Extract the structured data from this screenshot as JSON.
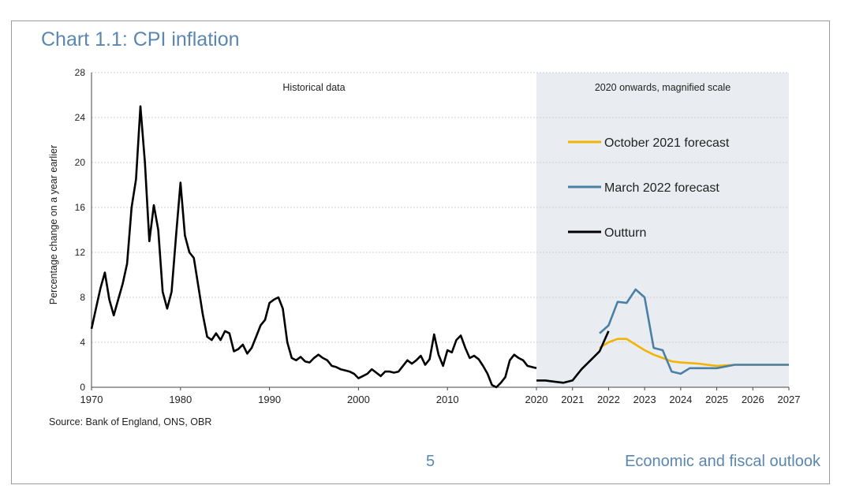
{
  "page": {
    "title": "Chart 1.1: CPI inflation",
    "source": "Source: Bank of England, ONS, OBR",
    "page_number": "5",
    "footer": "Economic and fiscal outlook"
  },
  "colors": {
    "outturn": "#000000",
    "october_2021": "#f2b400",
    "march_2022": "#4a7fa6",
    "shade": "#e9edf1",
    "grid": "#cfcfcf"
  },
  "chart_data": {
    "type": "line",
    "title": "Chart 1.1: CPI inflation",
    "ylabel": "Percentage change on a year earlier",
    "xlabel": "",
    "ylim": [
      0,
      28
    ],
    "yticks": [
      "0",
      "4",
      "8",
      "12",
      "16",
      "20",
      "24",
      "28"
    ],
    "grid": true,
    "legend_placement": "right, inside shaded panel",
    "annotations": [
      "Historical data",
      "2020 onwards, magnified scale"
    ],
    "historical": {
      "x_ticks": [
        "1970",
        "1980",
        "1990",
        "2000",
        "2010"
      ],
      "xlim": [
        1970,
        2020
      ],
      "outturn": [
        [
          1970,
          5.2
        ],
        [
          1970.5,
          7.0
        ],
        [
          1971,
          8.8
        ],
        [
          1971.5,
          10.2
        ],
        [
          1972,
          7.8
        ],
        [
          1972.5,
          6.4
        ],
        [
          1973,
          7.8
        ],
        [
          1973.5,
          9.2
        ],
        [
          1974,
          11.0
        ],
        [
          1974.5,
          16.0
        ],
        [
          1975,
          18.5
        ],
        [
          1975.5,
          25.0
        ],
        [
          1976,
          20.0
        ],
        [
          1976.5,
          13.0
        ],
        [
          1977,
          16.2
        ],
        [
          1977.5,
          14.0
        ],
        [
          1978,
          8.5
        ],
        [
          1978.5,
          7.0
        ],
        [
          1979,
          8.5
        ],
        [
          1979.5,
          13.5
        ],
        [
          1980,
          18.2
        ],
        [
          1980.5,
          13.5
        ],
        [
          1981,
          12.0
        ],
        [
          1981.5,
          11.5
        ],
        [
          1982,
          9.0
        ],
        [
          1982.5,
          6.5
        ],
        [
          1983,
          4.5
        ],
        [
          1983.5,
          4.2
        ],
        [
          1984,
          4.8
        ],
        [
          1984.5,
          4.2
        ],
        [
          1985,
          5.0
        ],
        [
          1985.5,
          4.8
        ],
        [
          1986,
          3.2
        ],
        [
          1986.5,
          3.4
        ],
        [
          1987,
          3.8
        ],
        [
          1987.5,
          3.0
        ],
        [
          1988,
          3.5
        ],
        [
          1988.5,
          4.5
        ],
        [
          1989,
          5.5
        ],
        [
          1989.5,
          6.0
        ],
        [
          1990,
          7.5
        ],
        [
          1990.5,
          7.8
        ],
        [
          1991,
          8.0
        ],
        [
          1991.5,
          7.0
        ],
        [
          1992,
          4.0
        ],
        [
          1992.5,
          2.6
        ],
        [
          1993,
          2.4
        ],
        [
          1993.5,
          2.7
        ],
        [
          1994,
          2.3
        ],
        [
          1994.5,
          2.2
        ],
        [
          1995,
          2.6
        ],
        [
          1995.5,
          2.9
        ],
        [
          1996,
          2.6
        ],
        [
          1996.5,
          2.4
        ],
        [
          1997,
          1.9
        ],
        [
          1997.5,
          1.8
        ],
        [
          1998,
          1.6
        ],
        [
          1998.5,
          1.5
        ],
        [
          1999,
          1.4
        ],
        [
          1999.5,
          1.2
        ],
        [
          2000,
          0.8
        ],
        [
          2000.5,
          1.0
        ],
        [
          2001,
          1.2
        ],
        [
          2001.5,
          1.6
        ],
        [
          2002,
          1.3
        ],
        [
          2002.5,
          1.0
        ],
        [
          2003,
          1.4
        ],
        [
          2003.5,
          1.4
        ],
        [
          2004,
          1.3
        ],
        [
          2004.5,
          1.4
        ],
        [
          2005,
          1.9
        ],
        [
          2005.5,
          2.4
        ],
        [
          2006,
          2.1
        ],
        [
          2006.5,
          2.4
        ],
        [
          2007,
          2.8
        ],
        [
          2007.5,
          2.0
        ],
        [
          2008,
          2.5
        ],
        [
          2008.5,
          4.7
        ],
        [
          2009,
          2.9
        ],
        [
          2009.5,
          1.9
        ],
        [
          2010,
          3.3
        ],
        [
          2010.5,
          3.1
        ],
        [
          2011,
          4.2
        ],
        [
          2011.5,
          4.6
        ],
        [
          2012,
          3.5
        ],
        [
          2012.5,
          2.6
        ],
        [
          2013,
          2.8
        ],
        [
          2013.5,
          2.5
        ],
        [
          2014,
          1.9
        ],
        [
          2014.5,
          1.2
        ],
        [
          2015,
          0.2
        ],
        [
          2015.5,
          0.0
        ],
        [
          2016,
          0.4
        ],
        [
          2016.5,
          0.9
        ],
        [
          2017,
          2.4
        ],
        [
          2017.5,
          2.9
        ],
        [
          2018,
          2.6
        ],
        [
          2018.5,
          2.4
        ],
        [
          2019,
          1.9
        ],
        [
          2019.5,
          1.8
        ],
        [
          2020,
          1.7
        ]
      ]
    },
    "magnified": {
      "x_ticks": [
        "2020",
        "2021",
        "2022",
        "2023",
        "2024",
        "2025",
        "2026",
        "2027"
      ],
      "xlim": [
        2020,
        2027
      ],
      "series": [
        {
          "name": "October 2021 forecast",
          "points": [
            [
              2021.75,
              3.5
            ],
            [
              2022,
              4.0
            ],
            [
              2022.25,
              4.3
            ],
            [
              2022.5,
              4.3
            ],
            [
              2022.75,
              3.8
            ],
            [
              2023,
              3.3
            ],
            [
              2023.25,
              2.9
            ],
            [
              2023.5,
              2.6
            ],
            [
              2023.75,
              2.3
            ],
            [
              2024,
              2.2
            ],
            [
              2024.5,
              2.1
            ],
            [
              2025,
              1.9
            ],
            [
              2025.5,
              2.0
            ],
            [
              2026,
              2.0
            ],
            [
              2026.5,
              2.0
            ],
            [
              2027,
              2.0
            ]
          ]
        },
        {
          "name": "March 2022 forecast",
          "points": [
            [
              2021.75,
              4.8
            ],
            [
              2022,
              5.5
            ],
            [
              2022.25,
              7.6
            ],
            [
              2022.5,
              7.5
            ],
            [
              2022.75,
              8.7
            ],
            [
              2023,
              8.0
            ],
            [
              2023.25,
              3.5
            ],
            [
              2023.5,
              3.3
            ],
            [
              2023.75,
              1.4
            ],
            [
              2024,
              1.2
            ],
            [
              2024.25,
              1.7
            ],
            [
              2024.5,
              1.7
            ],
            [
              2025,
              1.7
            ],
            [
              2025.5,
              2.0
            ],
            [
              2026,
              2.0
            ],
            [
              2026.5,
              2.0
            ],
            [
              2027,
              2.0
            ]
          ]
        },
        {
          "name": "Outturn",
          "points": [
            [
              2020,
              0.6
            ],
            [
              2020.25,
              0.6
            ],
            [
              2020.5,
              0.5
            ],
            [
              2020.75,
              0.4
            ],
            [
              2021,
              0.6
            ],
            [
              2021.25,
              1.6
            ],
            [
              2021.5,
              2.4
            ],
            [
              2021.75,
              3.2
            ],
            [
              2022,
              5.0
            ]
          ]
        }
      ]
    }
  }
}
